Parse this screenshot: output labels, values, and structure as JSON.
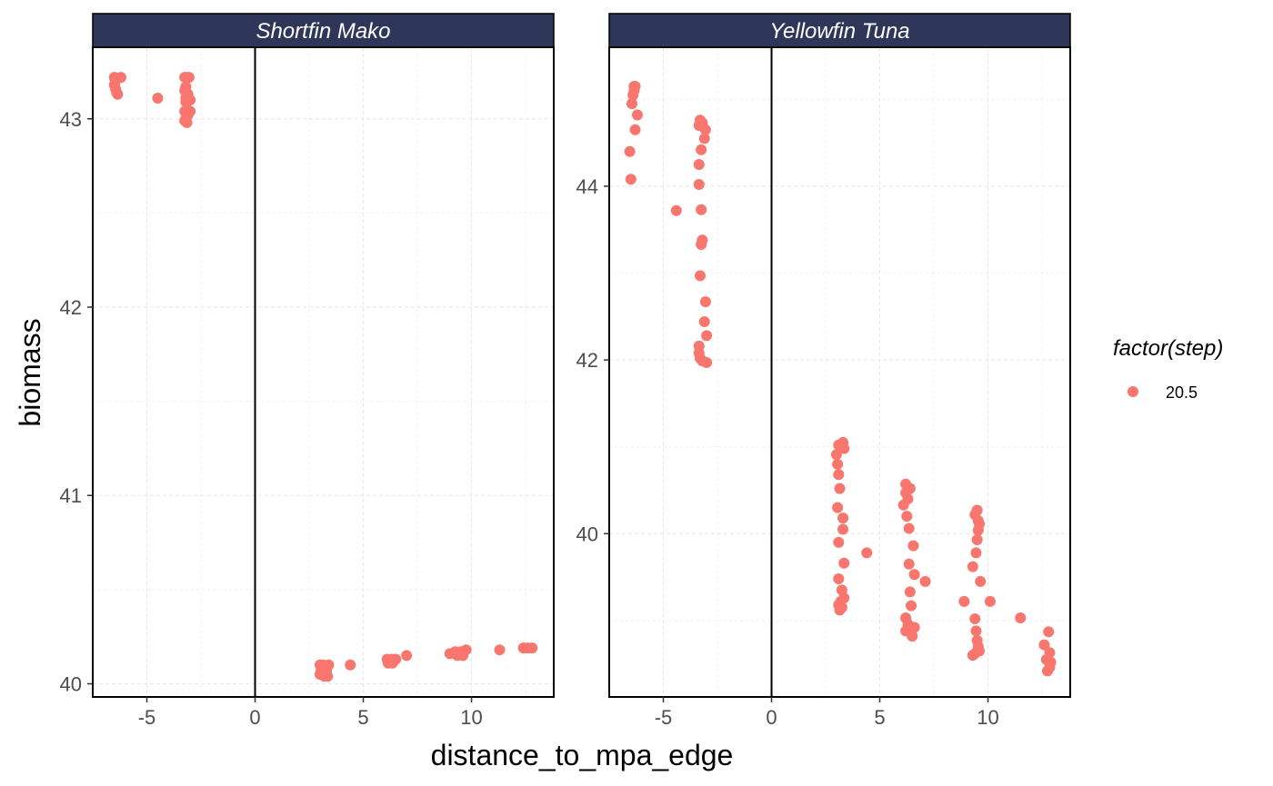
{
  "chart_data": {
    "type": "scatter",
    "xlabel": "distance_to_mpa_edge",
    "ylabel": "biomass",
    "colors": {
      "point": "#f8766d",
      "strip_bg": "#2e3659",
      "strip_text": "#ffffff",
      "vline": "#000000"
    },
    "legend": {
      "title": "factor(step)",
      "entries": [
        "20.5"
      ],
      "position": "right"
    },
    "grid": true,
    "vline_x": 0,
    "panels": [
      {
        "title": "Shortfin Mako",
        "xlim": [
          -7.5,
          13.8
        ],
        "ylim": [
          39.93,
          43.38
        ],
        "xticks": [
          -5,
          0,
          5,
          10
        ],
        "xtick_labels": [
          "-5",
          "0",
          "5",
          "10"
        ],
        "yticks": [
          40,
          41,
          42,
          43
        ],
        "ytick_labels": [
          "40",
          "41",
          "42",
          "43"
        ],
        "points": [
          [
            -6.5,
            43.22
          ],
          [
            -6.45,
            43.2
          ],
          [
            -6.5,
            43.18
          ],
          [
            -6.45,
            43.16
          ],
          [
            -6.4,
            43.14
          ],
          [
            -6.35,
            43.13
          ],
          [
            -6.2,
            43.22
          ],
          [
            -4.5,
            43.11
          ],
          [
            -3.25,
            43.22
          ],
          [
            -3.2,
            43.22
          ],
          [
            -3.05,
            43.22
          ],
          [
            -3.2,
            43.17
          ],
          [
            -3.25,
            43.15
          ],
          [
            -3.1,
            43.13
          ],
          [
            -3.2,
            43.11
          ],
          [
            -3.0,
            43.1
          ],
          [
            -3.2,
            43.09
          ],
          [
            -3.15,
            43.05
          ],
          [
            -3.25,
            43.04
          ],
          [
            -3.0,
            43.04
          ],
          [
            -3.1,
            43.02
          ],
          [
            -3.2,
            43.0
          ],
          [
            -3.25,
            42.99
          ],
          [
            -3.15,
            42.98
          ],
          [
            3.0,
            40.1
          ],
          [
            3.15,
            40.1
          ],
          [
            3.4,
            40.1
          ],
          [
            3.05,
            40.07
          ],
          [
            3.3,
            40.07
          ],
          [
            3.0,
            40.05
          ],
          [
            3.2,
            40.04
          ],
          [
            3.35,
            40.04
          ],
          [
            4.4,
            40.1
          ],
          [
            6.1,
            40.13
          ],
          [
            6.3,
            40.13
          ],
          [
            6.5,
            40.13
          ],
          [
            6.2,
            40.12
          ],
          [
            6.4,
            40.12
          ],
          [
            6.15,
            40.11
          ],
          [
            6.35,
            40.11
          ],
          [
            7.0,
            40.15
          ],
          [
            9.0,
            40.16
          ],
          [
            9.25,
            40.17
          ],
          [
            9.5,
            40.17
          ],
          [
            9.75,
            40.18
          ],
          [
            9.35,
            40.15
          ],
          [
            9.6,
            40.15
          ],
          [
            11.3,
            40.18
          ],
          [
            12.4,
            40.19
          ],
          [
            12.6,
            40.19
          ],
          [
            12.8,
            40.19
          ]
        ]
      },
      {
        "title": "Yellowfin Tuna",
        "xlim": [
          -7.5,
          13.8
        ],
        "ylim": [
          38.12,
          45.6
        ],
        "xticks": [
          -5,
          0,
          5,
          10
        ],
        "xtick_labels": [
          "-5",
          "0",
          "5",
          "10"
        ],
        "yticks": [
          40,
          42,
          44
        ],
        "ytick_labels": [
          "40",
          "42",
          "44"
        ],
        "points": [
          [
            -6.35,
            45.15
          ],
          [
            -6.3,
            45.15
          ],
          [
            -6.35,
            45.1
          ],
          [
            -6.4,
            45.05
          ],
          [
            -6.45,
            44.95
          ],
          [
            -6.2,
            44.82
          ],
          [
            -6.3,
            44.65
          ],
          [
            -6.55,
            44.4
          ],
          [
            -6.5,
            44.08
          ],
          [
            -4.4,
            43.72
          ],
          [
            -3.3,
            44.76
          ],
          [
            -3.2,
            44.73
          ],
          [
            -3.35,
            44.7
          ],
          [
            -3.05,
            44.65
          ],
          [
            -3.1,
            44.55
          ],
          [
            -3.25,
            44.42
          ],
          [
            -3.35,
            44.25
          ],
          [
            -3.35,
            44.02
          ],
          [
            -3.25,
            43.73
          ],
          [
            -3.2,
            43.38
          ],
          [
            -3.25,
            43.33
          ],
          [
            -3.3,
            42.97
          ],
          [
            -3.05,
            42.67
          ],
          [
            -3.1,
            42.44
          ],
          [
            -3.0,
            42.28
          ],
          [
            -3.35,
            42.16
          ],
          [
            -3.35,
            42.08
          ],
          [
            -3.3,
            42.02
          ],
          [
            -3.2,
            41.99
          ],
          [
            -3.0,
            41.97
          ],
          [
            3.1,
            41.02
          ],
          [
            3.3,
            41.05
          ],
          [
            3.35,
            40.98
          ],
          [
            3.0,
            40.91
          ],
          [
            3.05,
            40.8
          ],
          [
            3.1,
            40.68
          ],
          [
            3.15,
            40.52
          ],
          [
            3.05,
            40.3
          ],
          [
            3.3,
            40.18
          ],
          [
            3.3,
            40.05
          ],
          [
            3.1,
            39.9
          ],
          [
            3.35,
            39.66
          ],
          [
            3.1,
            39.48
          ],
          [
            3.25,
            39.35
          ],
          [
            3.35,
            39.26
          ],
          [
            3.2,
            39.22
          ],
          [
            3.1,
            39.18
          ],
          [
            3.25,
            39.15
          ],
          [
            3.15,
            39.12
          ],
          [
            4.4,
            39.78
          ],
          [
            6.2,
            40.57
          ],
          [
            6.4,
            40.52
          ],
          [
            6.2,
            40.47
          ],
          [
            6.3,
            40.4
          ],
          [
            6.1,
            40.33
          ],
          [
            6.25,
            40.2
          ],
          [
            6.35,
            40.06
          ],
          [
            6.55,
            39.86
          ],
          [
            6.35,
            39.65
          ],
          [
            6.6,
            39.53
          ],
          [
            6.4,
            39.33
          ],
          [
            6.45,
            39.17
          ],
          [
            6.2,
            39.03
          ],
          [
            6.3,
            38.96
          ],
          [
            6.6,
            38.92
          ],
          [
            6.2,
            38.88
          ],
          [
            6.5,
            38.82
          ],
          [
            7.1,
            39.45
          ],
          [
            9.5,
            40.27
          ],
          [
            9.4,
            40.22
          ],
          [
            9.55,
            40.15
          ],
          [
            9.6,
            40.11
          ],
          [
            9.55,
            40.04
          ],
          [
            9.5,
            39.93
          ],
          [
            9.45,
            39.78
          ],
          [
            9.3,
            39.62
          ],
          [
            9.65,
            39.45
          ],
          [
            9.4,
            39.02
          ],
          [
            9.45,
            38.88
          ],
          [
            9.5,
            38.77
          ],
          [
            9.55,
            38.7
          ],
          [
            9.6,
            38.65
          ],
          [
            9.4,
            38.62
          ],
          [
            9.3,
            38.6
          ],
          [
            8.9,
            39.22
          ],
          [
            10.1,
            39.22
          ],
          [
            11.5,
            39.03
          ],
          [
            12.8,
            38.87
          ],
          [
            12.6,
            38.72
          ],
          [
            12.85,
            38.63
          ],
          [
            12.7,
            38.55
          ],
          [
            12.9,
            38.52
          ],
          [
            12.85,
            38.46
          ],
          [
            12.75,
            38.42
          ]
        ]
      }
    ]
  }
}
